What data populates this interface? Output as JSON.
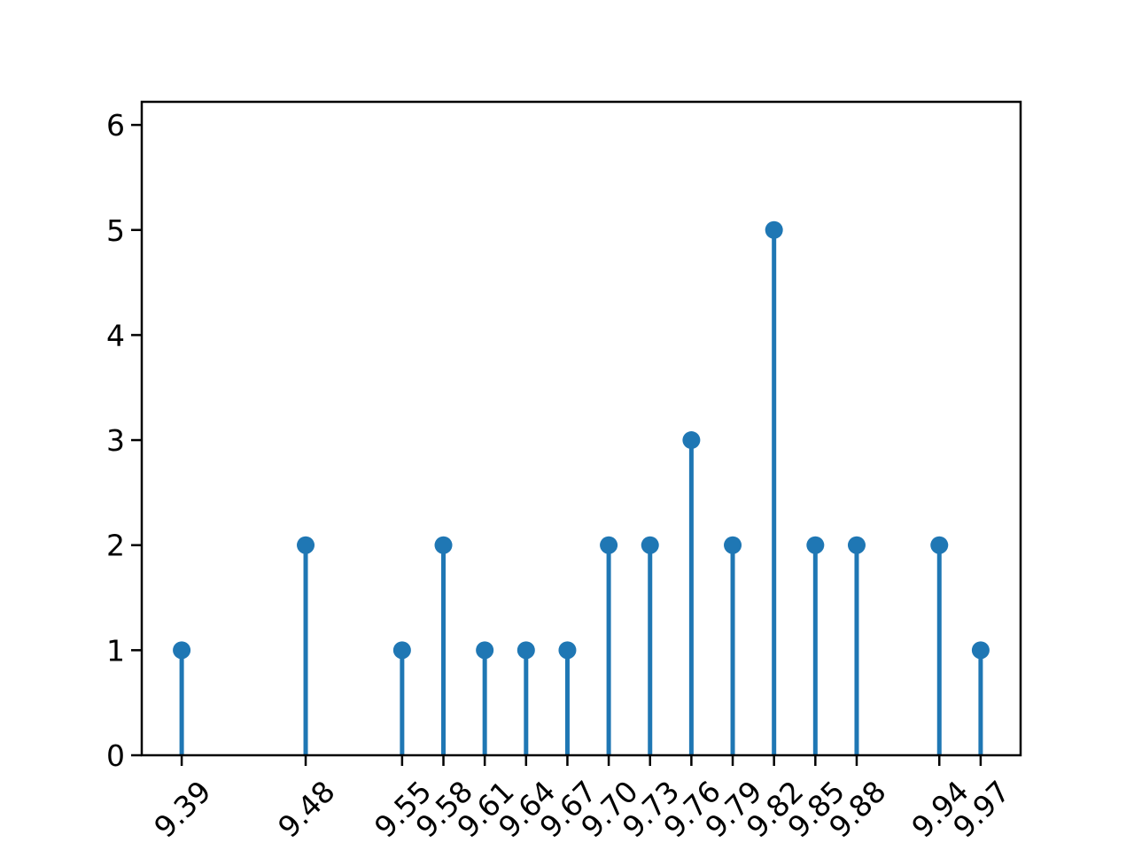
{
  "figure": {
    "title": "",
    "background": "#ffffff"
  },
  "chart_data": {
    "type": "stem",
    "title": "",
    "xlabel": "",
    "ylabel": "",
    "x": [
      9.39,
      9.48,
      9.55,
      9.58,
      9.61,
      9.64,
      9.67,
      9.7,
      9.73,
      9.76,
      9.79,
      9.82,
      9.85,
      9.88,
      9.94,
      9.97
    ],
    "values": [
      1,
      2,
      1,
      2,
      1,
      1,
      1,
      2,
      2,
      3,
      2,
      5,
      2,
      2,
      2,
      1
    ],
    "x_tick_labels": [
      "9.39",
      "9.48",
      "9.55",
      "9.58",
      "9.61",
      "9.64",
      "9.67",
      "9.70",
      "9.73",
      "9.76",
      "9.79",
      "9.82",
      "9.85",
      "9.88",
      "9.94",
      "9.97"
    ],
    "x_tick_rotation_deg": 45,
    "y_ticks": [
      0,
      1,
      2,
      3,
      4,
      5,
      6
    ],
    "y_tick_labels": [
      "0",
      "1",
      "2",
      "3",
      "4",
      "5",
      "6"
    ],
    "xlim": [
      9.361,
      9.999
    ],
    "ylim": [
      0,
      6.22
    ],
    "grid": false,
    "legend": null,
    "marker": "circle",
    "colors": {
      "stem": "#1f77b4",
      "marker": "#1f77b4",
      "axis": "#000000",
      "tick_text": "#000000",
      "background": "#ffffff"
    }
  }
}
